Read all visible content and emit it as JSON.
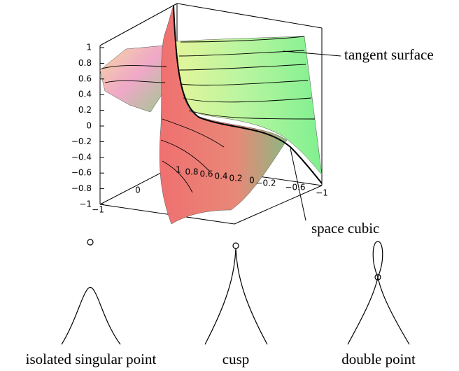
{
  "plot": {
    "z_axis_labels": [
      "1",
      "0.8",
      "0.6",
      "0.4",
      "0.2",
      "0",
      "−0.2",
      "−0.4",
      "−0.6",
      "−0.8",
      "−1"
    ],
    "x_axis_labels": [
      "1",
      "0.8",
      "0.6",
      "0.4",
      "0.2",
      "0",
      "−0.2",
      "−0.6",
      "−1"
    ],
    "y_axis_labels": [
      "0",
      "−1"
    ]
  },
  "annotations": [
    {
      "label": "tangent surface"
    },
    {
      "label": "space cubic"
    }
  ],
  "curves": [
    {
      "label": "isolated singular point"
    },
    {
      "label": "cusp"
    },
    {
      "label": "double point"
    }
  ]
}
